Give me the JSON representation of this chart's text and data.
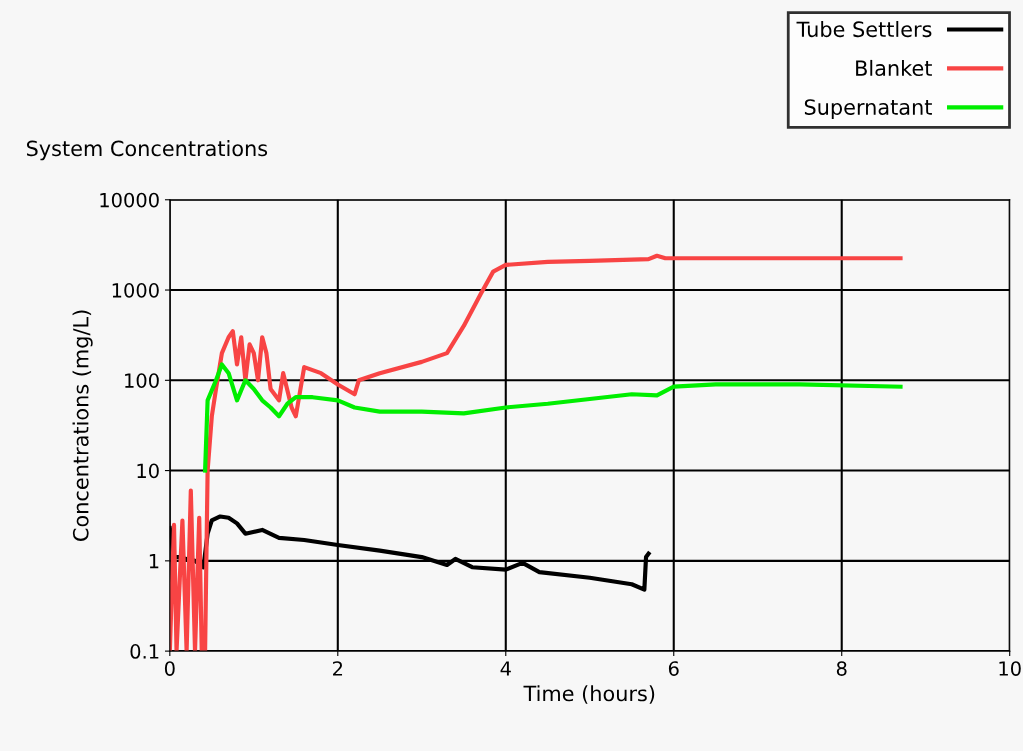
{
  "chart_data": {
    "type": "line",
    "title": "System Concentrations",
    "xlabel": "Time (hours)",
    "ylabel": "Concentrations (mg/L)",
    "log": "y",
    "xlim": [
      0,
      10
    ],
    "xticks": [
      0,
      2,
      4,
      6,
      8,
      10
    ],
    "ylim": [
      0.1,
      10000
    ],
    "yticks": [
      0.1,
      1,
      10,
      100,
      1000,
      10000
    ],
    "grid": true,
    "legend": "top right",
    "marker": "none",
    "line_style": "solid",
    "series": [
      {
        "name": "Tube Settlers",
        "color": "#000000",
        "x": [
          0,
          0.05,
          0.1,
          0.2,
          0.3,
          0.4,
          0.45,
          0.5,
          0.6,
          0.7,
          0.8,
          0.9,
          1.1,
          1.3,
          1.6,
          2.0,
          2.5,
          3.0,
          3.3,
          3.4,
          3.6,
          4.0,
          4.2,
          4.4,
          5.0,
          5.5,
          5.65,
          5.67,
          5.7
        ],
        "values": [
          2.3,
          1.1,
          1.1,
          1.05,
          1.0,
          0.85,
          2.0,
          2.8,
          3.1,
          3.0,
          2.6,
          2.0,
          2.2,
          1.8,
          1.7,
          1.5,
          1.3,
          1.1,
          0.9,
          1.05,
          0.85,
          0.8,
          0.95,
          0.75,
          0.65,
          0.55,
          0.48,
          1.1,
          1.2
        ]
      },
      {
        "name": "Blanket",
        "color": "#f84444",
        "x": [
          0,
          0.05,
          0.08,
          0.15,
          0.2,
          0.25,
          0.3,
          0.35,
          0.38,
          0.42,
          0.45,
          0.5,
          0.55,
          0.62,
          0.7,
          0.75,
          0.8,
          0.85,
          0.9,
          0.95,
          1.0,
          1.05,
          1.1,
          1.15,
          1.2,
          1.3,
          1.35,
          1.45,
          1.5,
          1.6,
          1.8,
          2.0,
          2.2,
          2.25,
          2.5,
          3.0,
          3.3,
          3.5,
          3.7,
          3.85,
          4.0,
          4.5,
          5.0,
          5.7,
          5.8,
          5.9,
          7.0,
          8.7
        ],
        "values": [
          0.1,
          2.5,
          0.1,
          2.8,
          0.1,
          6,
          0.1,
          3,
          0.1,
          0.1,
          10,
          40,
          80,
          200,
          300,
          350,
          150,
          300,
          100,
          250,
          200,
          100,
          300,
          200,
          80,
          60,
          120,
          50,
          40,
          140,
          120,
          90,
          70,
          100,
          120,
          160,
          200,
          400,
          900,
          1600,
          1900,
          2050,
          2100,
          2200,
          2400,
          2250,
          2250,
          2250
        ]
      },
      {
        "name": "Supernatant",
        "color": "#00ee00",
        "x": [
          0.42,
          0.45,
          0.55,
          0.62,
          0.7,
          0.8,
          0.9,
          1.0,
          1.1,
          1.2,
          1.3,
          1.4,
          1.5,
          1.7,
          2.0,
          2.2,
          2.5,
          3.0,
          3.5,
          4.0,
          4.5,
          5.0,
          5.5,
          5.8,
          6.0,
          6.5,
          7.5,
          8.7
        ],
        "values": [
          10,
          60,
          100,
          150,
          120,
          60,
          100,
          80,
          60,
          50,
          40,
          55,
          65,
          65,
          60,
          50,
          45,
          45,
          43,
          50,
          55,
          62,
          70,
          68,
          85,
          90,
          90,
          85
        ]
      }
    ]
  }
}
